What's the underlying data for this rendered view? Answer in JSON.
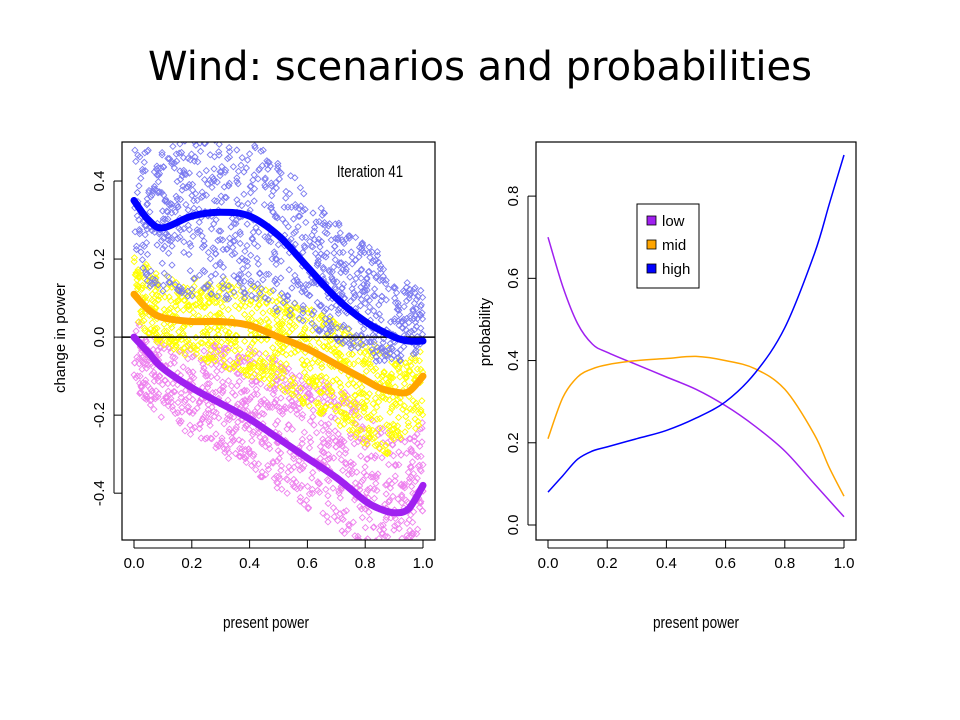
{
  "slide": {
    "title": "Wind: scenarios and probabilities"
  },
  "colors": {
    "low": "#a020f0",
    "mid": "#ffa500",
    "high": "#0000ff",
    "low_cloud": "#ee82ee",
    "mid_cloud": "#ffff00",
    "high_cloud": "#7b7bf0"
  },
  "chart_data": [
    {
      "type": "scatter",
      "annotation": "Iteration 41",
      "xlabel": "present power",
      "ylabel": "change in power",
      "xlim": [
        0,
        1
      ],
      "ylim": [
        -0.52,
        0.5
      ],
      "xticks": [
        "0.0",
        "0.2",
        "0.4",
        "0.6",
        "0.8",
        "1.0"
      ],
      "yticks": [
        "-0.4",
        "-0.2",
        "0.0",
        "0.2",
        "0.4"
      ],
      "hline": 0,
      "series": [
        {
          "key": "high",
          "x": [
            0,
            0.05,
            0.1,
            0.2,
            0.3,
            0.4,
            0.5,
            0.6,
            0.7,
            0.8,
            0.9,
            0.95,
            1.0
          ],
          "y": [
            0.35,
            0.3,
            0.28,
            0.31,
            0.32,
            0.31,
            0.26,
            0.18,
            0.1,
            0.04,
            0.0,
            -0.01,
            -0.01
          ]
        },
        {
          "key": "mid",
          "x": [
            0,
            0.05,
            0.1,
            0.2,
            0.3,
            0.4,
            0.5,
            0.6,
            0.7,
            0.8,
            0.85,
            0.9,
            0.95,
            1.0
          ],
          "y": [
            0.11,
            0.07,
            0.05,
            0.04,
            0.04,
            0.03,
            0.0,
            -0.03,
            -0.07,
            -0.11,
            -0.13,
            -0.14,
            -0.14,
            -0.1
          ]
        },
        {
          "key": "low",
          "x": [
            0,
            0.05,
            0.1,
            0.2,
            0.3,
            0.4,
            0.5,
            0.6,
            0.7,
            0.8,
            0.85,
            0.9,
            0.95,
            1.0
          ],
          "y": [
            0.0,
            -0.04,
            -0.08,
            -0.13,
            -0.17,
            -0.21,
            -0.26,
            -0.31,
            -0.36,
            -0.42,
            -0.44,
            -0.45,
            -0.44,
            -0.38
          ]
        }
      ]
    },
    {
      "type": "line",
      "xlabel": "present power",
      "ylabel": "probability",
      "xlim": [
        0,
        1
      ],
      "ylim": [
        0,
        0.9
      ],
      "xticks": [
        "0.0",
        "0.2",
        "0.4",
        "0.6",
        "0.8",
        "1.0"
      ],
      "yticks": [
        "0.0",
        "0.2",
        "0.4",
        "0.6",
        "0.8"
      ],
      "legend_position": "top-left",
      "series": [
        {
          "name": "low",
          "key": "low",
          "x": [
            0,
            0.05,
            0.1,
            0.15,
            0.2,
            0.3,
            0.4,
            0.5,
            0.6,
            0.7,
            0.8,
            0.9,
            1.0
          ],
          "y": [
            0.7,
            0.58,
            0.49,
            0.44,
            0.42,
            0.39,
            0.36,
            0.33,
            0.29,
            0.24,
            0.18,
            0.1,
            0.02
          ]
        },
        {
          "name": "mid",
          "key": "mid",
          "x": [
            0,
            0.05,
            0.1,
            0.15,
            0.2,
            0.3,
            0.4,
            0.5,
            0.6,
            0.7,
            0.8,
            0.9,
            0.95,
            1.0
          ],
          "y": [
            0.21,
            0.31,
            0.36,
            0.38,
            0.39,
            0.4,
            0.405,
            0.41,
            0.4,
            0.38,
            0.33,
            0.22,
            0.14,
            0.07
          ]
        },
        {
          "name": "high",
          "key": "high",
          "x": [
            0,
            0.05,
            0.1,
            0.15,
            0.2,
            0.3,
            0.4,
            0.5,
            0.6,
            0.7,
            0.8,
            0.9,
            0.95,
            1.0
          ],
          "y": [
            0.08,
            0.12,
            0.16,
            0.18,
            0.19,
            0.21,
            0.23,
            0.26,
            0.3,
            0.37,
            0.48,
            0.66,
            0.78,
            0.9
          ]
        }
      ]
    }
  ]
}
